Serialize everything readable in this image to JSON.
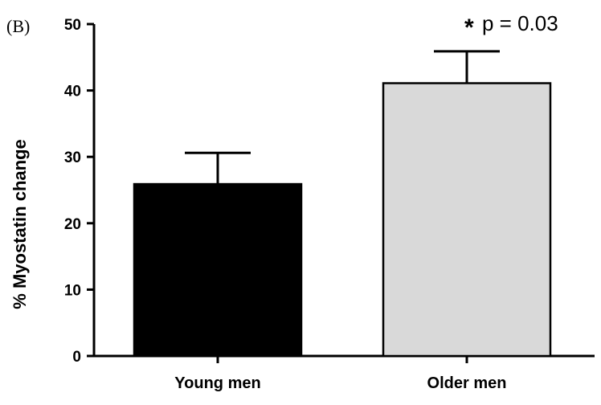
{
  "panel_label": "(B)",
  "chart_data": {
    "type": "bar",
    "categories": [
      "Young men",
      "Older men"
    ],
    "values": [
      25.9,
      41.1
    ],
    "errors": [
      4.7,
      4.8
    ],
    "bar_colors": [
      "#000000",
      "#d9d9d9"
    ],
    "ylabel": "% Myostatin change",
    "xlabel": "",
    "ylim": [
      0,
      50
    ],
    "yticks": [
      "0",
      "10",
      "20",
      "30",
      "40",
      "50"
    ],
    "grid": false,
    "annotation": {
      "star": "*",
      "text": "p = 0.03"
    }
  }
}
